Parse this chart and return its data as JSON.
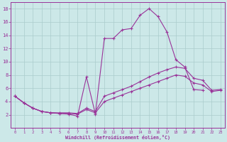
{
  "xlabel": "Windchill (Refroidissement éolien,°C)",
  "bg_color": "#cce8e8",
  "grid_color": "#aacccc",
  "line_color": "#993399",
  "xlim": [
    -0.5,
    23.5
  ],
  "ylim": [
    0,
    19
  ],
  "yticks": [
    2,
    4,
    6,
    8,
    10,
    12,
    14,
    16,
    18
  ],
  "xticks": [
    0,
    1,
    2,
    3,
    4,
    5,
    6,
    7,
    8,
    9,
    10,
    11,
    12,
    13,
    14,
    15,
    16,
    17,
    18,
    19,
    20,
    21,
    22,
    23
  ],
  "curve1_x": [
    0,
    1,
    2,
    3,
    4,
    5,
    6,
    7,
    8,
    9,
    10,
    11,
    12,
    13,
    14,
    15,
    16,
    17,
    18,
    19,
    20,
    21
  ],
  "curve1_y": [
    4.8,
    3.8,
    3.0,
    2.5,
    2.3,
    2.2,
    2.1,
    1.8,
    7.7,
    2.1,
    13.5,
    13.5,
    14.8,
    15.0,
    17.0,
    18.0,
    16.8,
    14.5,
    10.3,
    9.2,
    5.8,
    5.7
  ],
  "curve2_x": [
    0,
    1,
    2,
    3,
    4,
    5,
    6,
    7,
    8,
    9,
    10,
    11,
    12,
    13,
    14,
    15,
    16,
    17,
    18,
    19,
    20,
    21,
    22,
    23
  ],
  "curve2_y": [
    4.8,
    3.8,
    3.0,
    2.5,
    2.3,
    2.3,
    2.3,
    2.2,
    3.0,
    2.5,
    4.8,
    5.3,
    5.8,
    6.3,
    7.0,
    7.7,
    8.3,
    8.8,
    9.2,
    9.0,
    7.5,
    7.2,
    5.7,
    5.8
  ],
  "curve3_x": [
    0,
    1,
    2,
    3,
    4,
    5,
    6,
    7,
    8,
    9,
    10,
    11,
    12,
    13,
    14,
    15,
    16,
    17,
    18,
    19,
    20,
    21,
    22,
    23
  ],
  "curve3_y": [
    4.8,
    3.8,
    3.0,
    2.5,
    2.3,
    2.2,
    2.2,
    2.1,
    2.8,
    2.3,
    4.0,
    4.5,
    5.0,
    5.5,
    6.0,
    6.5,
    7.0,
    7.5,
    8.0,
    7.8,
    6.8,
    6.5,
    5.5,
    5.7
  ]
}
